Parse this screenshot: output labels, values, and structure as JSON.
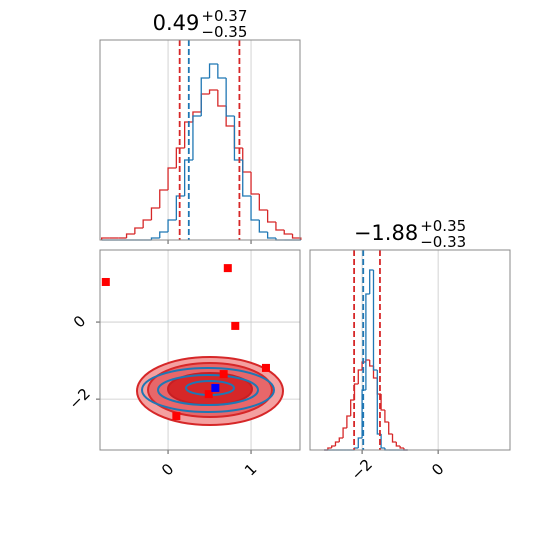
{
  "chart_data": [
    {
      "type": "histogram",
      "title": {
        "value": "0.49",
        "upper": "+0.37",
        "lower": "−0.35"
      },
      "xlim": [
        -0.82,
        1.59
      ],
      "ylim": [
        0,
        100
      ],
      "grid": true,
      "bins": [
        -0.8,
        -0.7,
        -0.6,
        -0.5,
        -0.4,
        -0.3,
        -0.2,
        -0.1,
        0.0,
        0.1,
        0.2,
        0.3,
        0.4,
        0.5,
        0.6,
        0.7,
        0.8,
        0.9,
        1.0,
        1.1,
        1.2,
        1.3,
        1.4,
        1.5,
        1.6
      ],
      "series": [
        {
          "color": "#d62728",
          "values": [
            1,
            1,
            1,
            3,
            6,
            10,
            16,
            25,
            36,
            46,
            59,
            64,
            73,
            75,
            67,
            57,
            46,
            34,
            23,
            15,
            9,
            5,
            3,
            1
          ]
        },
        {
          "color": "#1f77b4",
          "values": [
            0,
            0,
            0,
            0,
            0,
            0,
            1,
            4,
            10,
            22,
            40,
            62,
            81,
            88,
            81,
            62,
            40,
            22,
            10,
            4,
            1,
            0,
            0,
            0
          ]
        }
      ],
      "vlines": [
        {
          "value": 0.14,
          "color": "#d62728"
        },
        {
          "value": 0.25,
          "color": "#1f77b4"
        },
        {
          "value": 0.86,
          "color": "#d62728"
        }
      ]
    },
    {
      "type": "scatter",
      "xlim": [
        -0.82,
        1.59
      ],
      "ylim": [
        -3.32,
        1.87
      ],
      "grid": true,
      "xticks": [
        0,
        1
      ],
      "yticks": [
        0,
        {
          "value": -2,
          "label": "−2"
        }
      ],
      "series": [
        {
          "color": "#ff0000",
          "x": [
            -0.75,
            0.72,
            0.81,
            1.18,
            0.67,
            0.49,
            0.1
          ],
          "y": [
            1.04,
            1.4,
            -0.1,
            -1.19,
            -1.35,
            -1.87,
            -2.44
          ]
        },
        {
          "color": "#0000ff",
          "x": [
            0.57
          ],
          "y": [
            -1.71
          ]
        }
      ]
    },
    {
      "type": "histogram",
      "title": {
        "value": "−1.88",
        "upper": "+0.35",
        "lower": "−0.33"
      },
      "xlim": [
        -3.37,
        1.89
      ],
      "ylim": [
        0,
        100
      ],
      "grid": true,
      "xticks": [
        {
          "value": -2,
          "label": "−2"
        },
        0
      ],
      "bins": [
        -3.0,
        -2.9,
        -2.8,
        -2.7,
        -2.6,
        -2.5,
        -2.4,
        -2.3,
        -2.2,
        -2.1,
        -2.0,
        -1.9,
        -1.8,
        -1.7,
        -1.6,
        -1.5,
        -1.4,
        -1.3,
        -1.2,
        -1.1,
        -1.0,
        -0.9,
        -0.8
      ],
      "series": [
        {
          "color": "#d62728",
          "values": [
            0,
            1,
            2,
            4,
            6,
            11,
            17,
            25,
            33,
            40,
            44,
            45,
            42,
            36,
            28,
            20,
            14,
            8,
            4,
            2,
            1,
            0
          ]
        },
        {
          "color": "#1f77b4",
          "values": [
            0,
            0,
            0,
            0,
            0,
            0,
            0,
            0,
            1,
            6,
            30,
            78,
            90,
            40,
            8,
            1,
            0,
            0,
            0,
            0,
            0,
            0
          ]
        }
      ],
      "vlines": [
        {
          "value": -2.21,
          "color": "#d62728"
        },
        {
          "value": -1.97,
          "color": "#1f77b4"
        },
        {
          "value": -1.53,
          "color": "#d62728"
        }
      ]
    }
  ]
}
